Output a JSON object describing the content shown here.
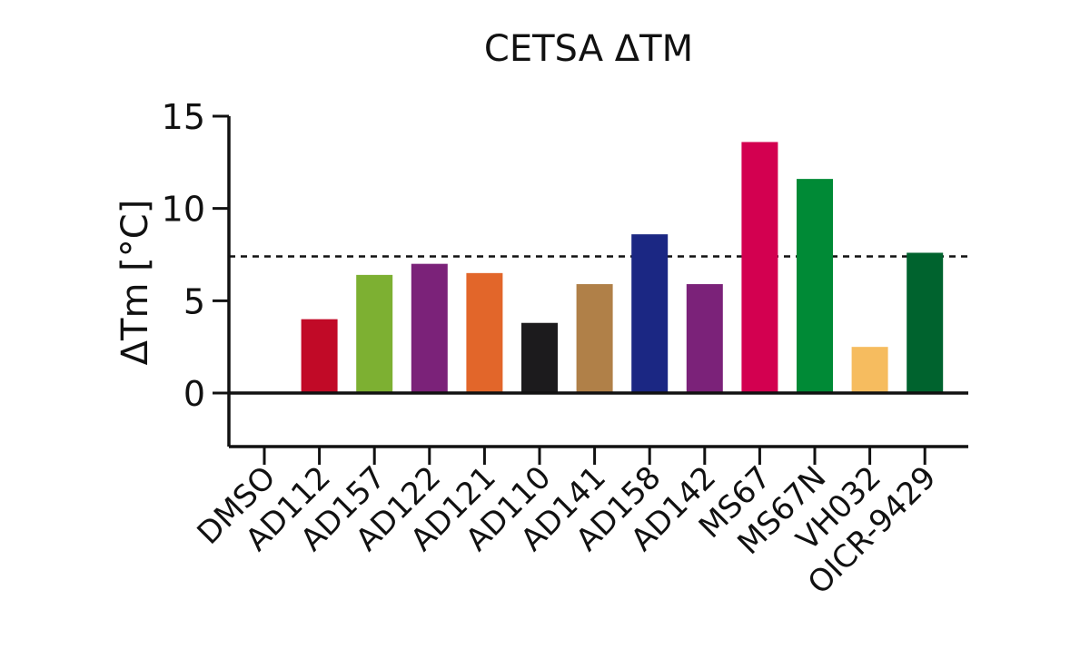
{
  "chart_data": {
    "type": "bar",
    "title": "CETSA ΔTM",
    "ylabel": "ΔTm [°C]",
    "xlabel": "",
    "ylim": [
      -3,
      15
    ],
    "yticks": [
      0,
      5,
      10,
      15
    ],
    "reference_line": {
      "y": 7.4,
      "style": "dashed"
    },
    "zero_line": true,
    "grid": false,
    "categories": [
      "DMSO",
      "AD112",
      "AD157",
      "AD122",
      "AD121",
      "AD110",
      "AD141",
      "AD158",
      "AD142",
      "MS67",
      "MS67N",
      "VH032",
      "OICR-9429"
    ],
    "values": [
      0,
      4.0,
      6.4,
      7.0,
      6.5,
      3.8,
      5.9,
      8.6,
      5.9,
      13.6,
      11.6,
      2.5,
      7.6
    ],
    "colors": [
      "#ffffff",
      "#c10a27",
      "#7db032",
      "#7b2279",
      "#e2662a",
      "#1c1b1d",
      "#b08048",
      "#1b2783",
      "#7b2279",
      "#d30050",
      "#008a36",
      "#f6bc5f",
      "#00632e"
    ]
  }
}
